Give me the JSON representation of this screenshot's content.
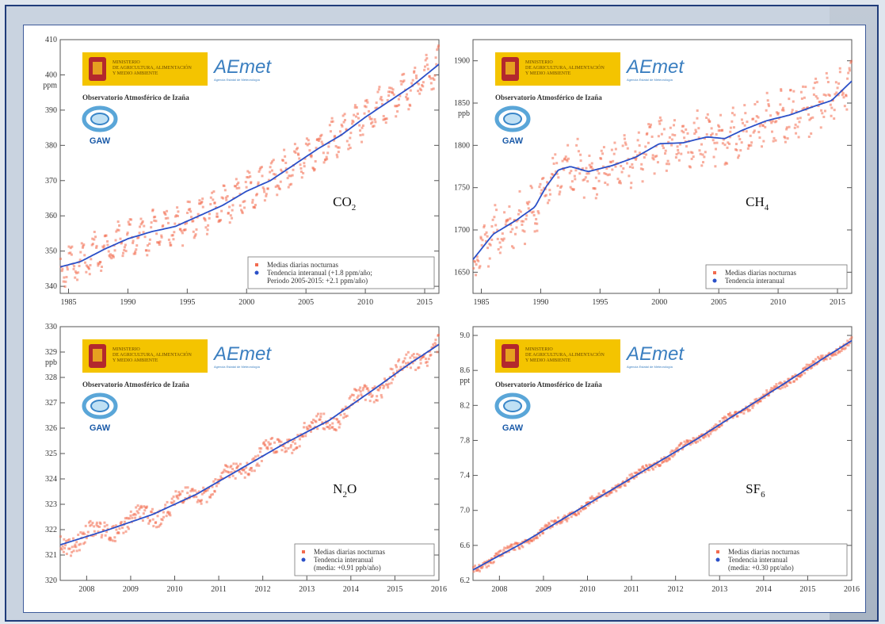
{
  "header": {
    "ministry": [
      "MINISTERIO",
      "DE AGRICULTURA, ALIMENTACIÓN",
      "Y MEDIO AMBIENTE"
    ],
    "aemet_logo": "AEmet",
    "aemet_sub": "Agencia Estatal de Meteorología",
    "observatory": "Observatorio Atmosférico de Izaña",
    "gaw": "GAW"
  },
  "chart_data": [
    {
      "type": "scatter",
      "gas": "CO",
      "gas_sub": "2",
      "ylabel": "ppm",
      "xlim": [
        1984.3,
        2016.2
      ],
      "ylim": [
        338,
        410
      ],
      "xticks": [
        1985,
        1990,
        1995,
        2000,
        2005,
        2010,
        2015
      ],
      "xtick_labels": [
        "1985",
        "1990",
        "1995",
        "2000",
        "2005",
        "2010",
        "2015"
      ],
      "yticks": [
        340,
        350,
        360,
        370,
        380,
        390,
        400,
        410
      ],
      "ytick_labels": [
        "340",
        "350",
        "360",
        "370",
        "380",
        "390",
        "400",
        "410"
      ],
      "trend": {
        "x": [
          1984.3,
          1986,
          1988,
          1990,
          1992,
          1994,
          1996,
          1998,
          2000,
          2002,
          2004,
          2006,
          2008,
          2010,
          2012,
          2014,
          2016.2
        ],
        "y": [
          345.5,
          347,
          350.5,
          353.5,
          355.5,
          357,
          360,
          363,
          367,
          370,
          374.5,
          379,
          383,
          388,
          392.5,
          397,
          403
        ]
      },
      "scatter_amp": 4.5,
      "scatter_noise": 2.0,
      "legend": [
        "Medias diarias nocturnas",
        "Tendencia interanual (+1.8 ppm/año;",
        "Periodo 2005-2015: +2.1 ppm/año)"
      ],
      "color_points": "#f26b4f",
      "color_trend": "#2b50c8"
    },
    {
      "type": "scatter",
      "gas": "CH",
      "gas_sub": "4",
      "ylabel": "ppb",
      "xlim": [
        1984.3,
        2016.2
      ],
      "ylim": [
        1625,
        1925
      ],
      "xticks": [
        1985,
        1990,
        1995,
        2000,
        2005,
        2010,
        2015
      ],
      "xtick_labels": [
        "1985",
        "1990",
        "1995",
        "2000",
        "2005",
        "2010",
        "2015"
      ],
      "yticks": [
        1650,
        1700,
        1750,
        1800,
        1850,
        1900
      ],
      "ytick_labels": [
        "1650",
        "1700",
        "1750",
        "1800",
        "1850",
        "1900"
      ],
      "trend": {
        "x": [
          1984.3,
          1986,
          1988,
          1989.5,
          1990.5,
          1991.5,
          1992.5,
          1994,
          1996,
          1998,
          2000,
          2002,
          2004,
          2005.5,
          2007,
          2009,
          2011,
          2013,
          2014.5,
          2016.2
        ],
        "y": [
          1665,
          1695,
          1712,
          1727,
          1752,
          1771,
          1775,
          1769,
          1776,
          1786,
          1802,
          1803,
          1810,
          1808,
          1818,
          1829,
          1836,
          1846,
          1853,
          1876
        ]
      },
      "scatter_amp": 18,
      "scatter_noise": 18,
      "legend": [
        "Medias diarias nocturnas",
        "Tendencia interanual"
      ],
      "color_points": "#f26b4f",
      "color_trend": "#2b50c8"
    },
    {
      "type": "scatter",
      "gas": "N",
      "gas_sub": "2",
      "gas_tail": "O",
      "ylabel": "ppb",
      "xlim": [
        2007.4,
        2016.0
      ],
      "ylim": [
        320,
        330
      ],
      "xticks": [
        2008,
        2009,
        2010,
        2011,
        2012,
        2013,
        2014,
        2015,
        2016
      ],
      "xtick_labels": [
        "2008",
        "2009",
        "2010",
        "2011",
        "2012",
        "2013",
        "2014",
        "2015",
        "2016"
      ],
      "yticks": [
        320,
        321,
        322,
        323,
        324,
        325,
        326,
        327,
        328,
        329,
        330
      ],
      "ytick_labels": [
        "320",
        "321",
        "322",
        "323",
        "324",
        "325",
        "326",
        "327",
        "328",
        "329",
        "330"
      ],
      "trend": {
        "x": [
          2007.4,
          2008.5,
          2009.5,
          2010.5,
          2011.5,
          2012.5,
          2013.5,
          2014.5,
          2015.3,
          2016.0
        ],
        "y": [
          321.4,
          322.0,
          322.6,
          323.4,
          324.4,
          325.4,
          326.3,
          327.5,
          328.5,
          329.3
        ]
      },
      "scatter_amp": 0.25,
      "scatter_noise": 0.35,
      "legend": [
        "Medias diarias nocturnas",
        "Tendencia interanual",
        "(media: +0.91 ppb/año)"
      ],
      "color_points": "#f26b4f",
      "color_trend": "#2b50c8"
    },
    {
      "type": "scatter",
      "gas": "SF",
      "gas_sub": "6",
      "ylabel": "ppt",
      "xlim": [
        2007.4,
        2016.0
      ],
      "ylim": [
        6.2,
        9.1
      ],
      "xticks": [
        2008,
        2009,
        2010,
        2011,
        2012,
        2013,
        2014,
        2015,
        2016
      ],
      "xtick_labels": [
        "2008",
        "2009",
        "2010",
        "2011",
        "2012",
        "2013",
        "2014",
        "2015",
        "2016"
      ],
      "yticks": [
        6.2,
        6.6,
        7.0,
        7.4,
        7.8,
        8.2,
        8.6,
        9.0
      ],
      "ytick_labels": [
        "6.2",
        "6.6",
        "7.0",
        "7.4",
        "7.8",
        "8.2",
        "8.6",
        "9.0"
      ],
      "trend": {
        "x": [
          2007.4,
          2008.5,
          2009.5,
          2010.5,
          2011.5,
          2012.5,
          2013.5,
          2014.5,
          2015.3,
          2016.0
        ],
        "y": [
          6.32,
          6.62,
          6.92,
          7.22,
          7.52,
          7.82,
          8.14,
          8.46,
          8.72,
          8.94
        ]
      },
      "scatter_amp": 0.02,
      "scatter_noise": 0.04,
      "legend": [
        "Medias diarias nocturnas",
        "Tendencia interanual",
        "(media: +0.30 ppt/año)"
      ],
      "color_points": "#f26b4f",
      "color_trend": "#2b50c8"
    }
  ]
}
